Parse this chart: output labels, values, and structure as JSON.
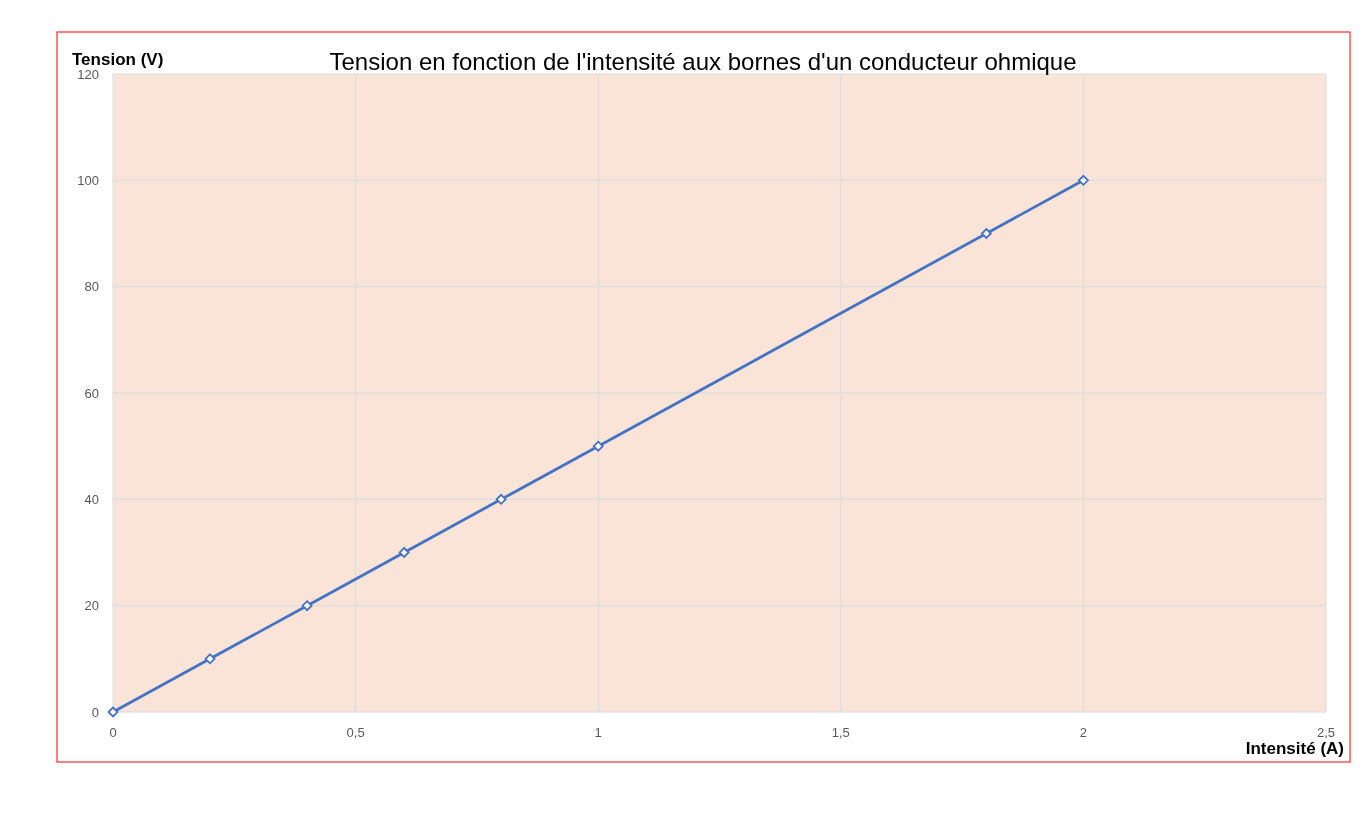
{
  "chart_data": {
    "type": "line",
    "title": "Tension en fonction de l'intensité aux bornes d'un conducteur ohmique",
    "xlabel": "Intensité (A)",
    "ylabel": "Tension (V)",
    "x": [
      0,
      0.2,
      0.4,
      0.6,
      0.8,
      1,
      1.8,
      2
    ],
    "series": [
      {
        "color": "#4472c4",
        "values": [
          0,
          10,
          20,
          30,
          40,
          50,
          90,
          100
        ]
      }
    ],
    "xlim": [
      0,
      2.5
    ],
    "xticks": [
      0,
      {
        "value": 0.5,
        "label": "0,5"
      },
      1,
      {
        "value": 1.5,
        "label": "1,5"
      },
      2,
      {
        "value": 2.5,
        "label": "2,5"
      }
    ],
    "ylim": [
      0,
      120
    ],
    "yticks": [
      0,
      20,
      40,
      60,
      80,
      100,
      120
    ],
    "grid": true,
    "marker": "diamond",
    "line_style": "solid"
  }
}
